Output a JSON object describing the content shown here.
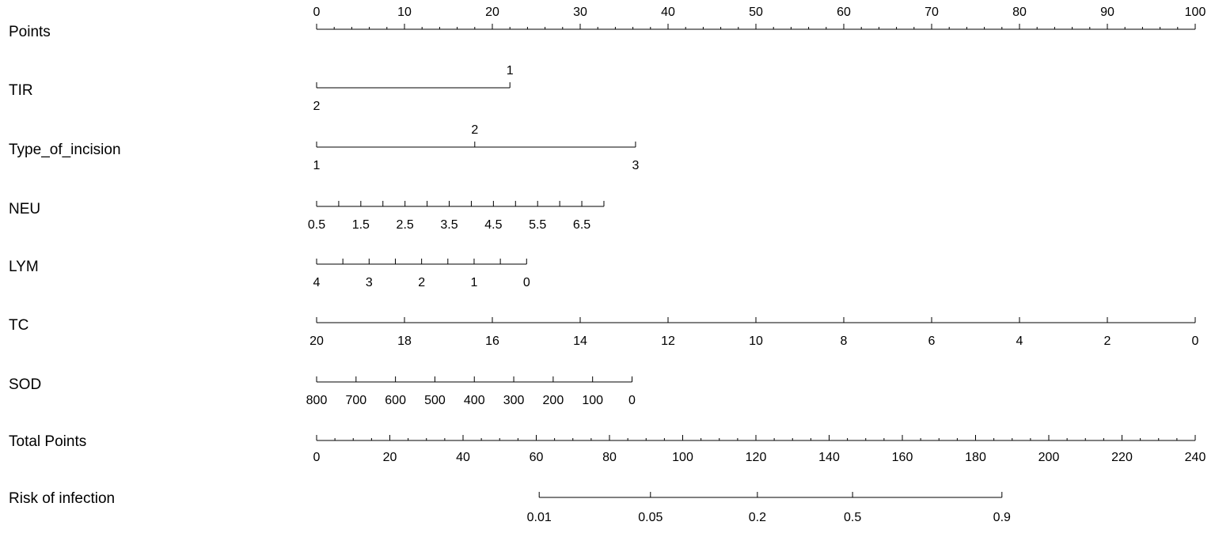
{
  "chart_data": {
    "type": "nomogram",
    "color": "#000000",
    "points_axis": {
      "name": "Points",
      "lim": [
        0,
        100
      ],
      "ticks": [
        0,
        10,
        20,
        30,
        40,
        50,
        60,
        70,
        80,
        90,
        100
      ],
      "minor_step": 2
    },
    "variables": [
      {
        "name": "TIR",
        "categories": [
          "1",
          "2"
        ],
        "points": [
          22,
          0
        ],
        "label_side": [
          "above",
          "below"
        ]
      },
      {
        "name": "Type_of_incision",
        "categories": [
          "1",
          "2",
          "3"
        ],
        "points": [
          0,
          18,
          36.3
        ],
        "label_side": [
          "below",
          "above",
          "below"
        ]
      },
      {
        "name": "NEU",
        "lim": [
          0.5,
          7
        ],
        "points_lim": [
          0,
          32.7
        ],
        "ticks": [
          0.5,
          1.5,
          2.5,
          3.5,
          4.5,
          5.5,
          6.5
        ],
        "minor_ticks": [
          1,
          2,
          3,
          4,
          5,
          6,
          7
        ]
      },
      {
        "name": "LYM",
        "lim": [
          4,
          0
        ],
        "points_lim": [
          0,
          23.9
        ],
        "ticks": [
          4,
          3,
          2,
          1,
          0
        ],
        "minor_ticks": [
          3.5,
          2.5,
          1.5,
          0.5
        ]
      },
      {
        "name": "TC",
        "lim": [
          20,
          0
        ],
        "points_lim": [
          0,
          100
        ],
        "ticks": [
          20,
          18,
          16,
          14,
          12,
          10,
          8,
          6,
          4,
          2,
          0
        ],
        "minor_ticks": []
      },
      {
        "name": "SOD",
        "lim": [
          800,
          0
        ],
        "points_lim": [
          0,
          35.9
        ],
        "ticks": [
          800,
          700,
          600,
          500,
          400,
          300,
          200,
          100,
          0
        ],
        "minor_ticks": []
      }
    ],
    "total_axis": {
      "name": "Total Points",
      "lim": [
        0,
        240
      ],
      "ticks": [
        0,
        20,
        40,
        60,
        80,
        100,
        120,
        140,
        160,
        180,
        200,
        220,
        240
      ],
      "minor_step": 5
    },
    "risk_axis": {
      "name": "Risk of infection",
      "ticks": [
        0.01,
        0.05,
        0.2,
        0.5,
        0.9
      ],
      "total_points": [
        60.8,
        91.2,
        120.4,
        146.4,
        187.2
      ]
    }
  }
}
